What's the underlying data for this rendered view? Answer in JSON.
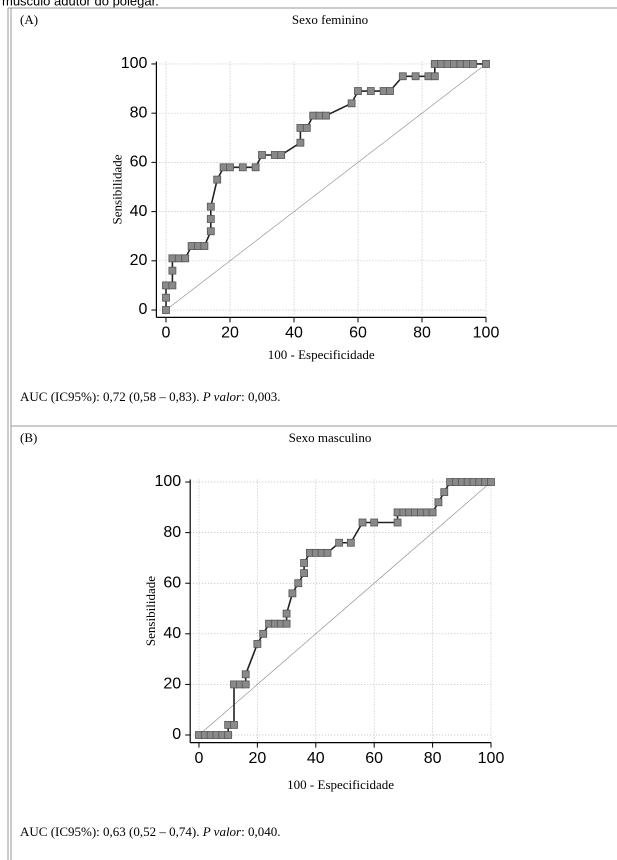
{
  "heading": "músculo adutor do polegar.",
  "chart_data": [
    {
      "type": "line",
      "panel_label": "(A)",
      "title": "Sexo feminino",
      "xlabel": "100 - Especificidade",
      "ylabel": "Sensibilidade",
      "caption": [
        "AUC (IC95%): 0,72 (0,58 – 0,83). ",
        "P valor",
        ": 0,003."
      ],
      "x": [
        0,
        0,
        0,
        2,
        2,
        2,
        4,
        6,
        8,
        10,
        12,
        14,
        14,
        14,
        16,
        18,
        20,
        24,
        28,
        30,
        34,
        36,
        42,
        42,
        44,
        46,
        48,
        50,
        58,
        60,
        64,
        68,
        70,
        74,
        78,
        82,
        84,
        84,
        86,
        88,
        90,
        92,
        94,
        96,
        100
      ],
      "values": [
        0,
        5,
        10,
        10,
        16,
        21,
        21,
        21,
        26,
        26,
        26,
        32,
        37,
        42,
        53,
        58,
        58,
        58,
        58,
        63,
        63,
        63,
        68,
        74,
        74,
        79,
        79,
        79,
        84,
        89,
        89,
        89,
        89,
        95,
        95,
        95,
        95,
        100,
        100,
        100,
        100,
        100,
        100,
        100,
        100
      ],
      "color": "#8a8a8a",
      "xlim": [
        -3,
        100
      ],
      "ylim": [
        -3,
        101
      ],
      "xticks": [
        0,
        20,
        40,
        60,
        80,
        100
      ],
      "yticks": [
        0,
        20,
        40,
        60,
        80,
        100
      ],
      "grid": true
    },
    {
      "type": "line",
      "panel_label": "(B)",
      "title": "Sexo masculino",
      "xlabel": "100 - Especificidade",
      "ylabel": "Sensibilidade",
      "caption": [
        "AUC (IC95%): 0,63 (0,52 – 0,74). ",
        "P valor",
        ": 0,040."
      ],
      "x": [
        0,
        2,
        4,
        6,
        8,
        10,
        10,
        12,
        12,
        14,
        16,
        16,
        20,
        22,
        24,
        26,
        28,
        30,
        30,
        32,
        34,
        36,
        36,
        38,
        40,
        42,
        44,
        48,
        52,
        56,
        60,
        68,
        68,
        70,
        72,
        74,
        76,
        78,
        80,
        82,
        84,
        86,
        88,
        90,
        92,
        94,
        96,
        98,
        100
      ],
      "values": [
        0,
        0,
        0,
        0,
        0,
        0,
        4,
        4,
        20,
        20,
        20,
        24,
        36,
        40,
        44,
        44,
        44,
        44,
        48,
        56,
        60,
        64,
        68,
        72,
        72,
        72,
        72,
        76,
        76,
        84,
        84,
        84,
        88,
        88,
        88,
        88,
        88,
        88,
        88,
        92,
        96,
        100,
        100,
        100,
        100,
        100,
        100,
        100,
        100
      ],
      "color": "#8a8a8a",
      "xlim": [
        -3,
        100
      ],
      "ylim": [
        -3,
        101
      ],
      "xticks": [
        0,
        20,
        40,
        60,
        80,
        100
      ],
      "yticks": [
        0,
        20,
        40,
        60,
        80,
        100
      ],
      "grid": true
    }
  ]
}
